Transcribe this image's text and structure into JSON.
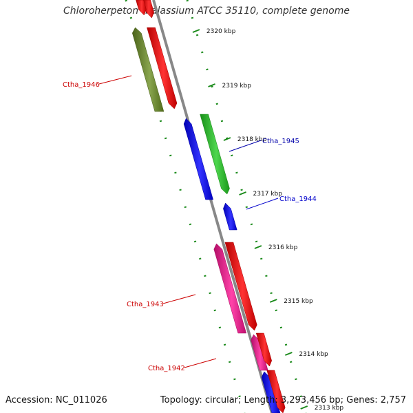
{
  "title": "Chloroherpeton thalassium ATCC 35110, complete genome",
  "footer": {
    "accession": "Accession: NC_011026",
    "summary": "Topology: circular; Length: 3,293,456 bp; Genes: 2,757"
  },
  "ticks": [
    "2320 kbp",
    "2319 kbp",
    "2318 kbp",
    "2317 kbp",
    "2316 kbp",
    "2315 kbp",
    "2314 kbp",
    "2313 kbp"
  ],
  "genes": [
    {
      "label": "",
      "strand": "forward",
      "color": "#ff0000"
    },
    {
      "label": "",
      "strand": "forward",
      "color": "#ff0000"
    },
    {
      "label": "",
      "strand": "reverse",
      "color": "#6b8e23"
    },
    {
      "label": "Ctha_1946",
      "strand": "forward",
      "color": "#ff0000",
      "label_color": "#cc0000"
    },
    {
      "label": "Ctha_1945",
      "strand": "forward",
      "color": "#22cc22",
      "label_color": "#0000aa"
    },
    {
      "label": "",
      "strand": "reverse",
      "color": "#0000ff"
    },
    {
      "label": "Ctha_1944",
      "strand": "reverse",
      "color": "#0000ff",
      "label_color": "#0000cc"
    },
    {
      "label": "Ctha_1943",
      "strand": "forward",
      "color": "#ff0000",
      "label_color": "#cc0000"
    },
    {
      "label": "",
      "strand": "reverse",
      "color": "#ff1493"
    },
    {
      "label": "Ctha_1942",
      "strand": "reverse",
      "color": "#ff1493",
      "label_color": "#cc0000"
    },
    {
      "label": "",
      "strand": "forward",
      "color": "#ff0000"
    },
    {
      "label": "",
      "strand": "reverse",
      "color": "#0000ff"
    },
    {
      "label": "",
      "strand": "forward",
      "color": "#ff0000"
    }
  ],
  "colors": {
    "backbone": "#888888",
    "tick": "#1a8a1a"
  }
}
